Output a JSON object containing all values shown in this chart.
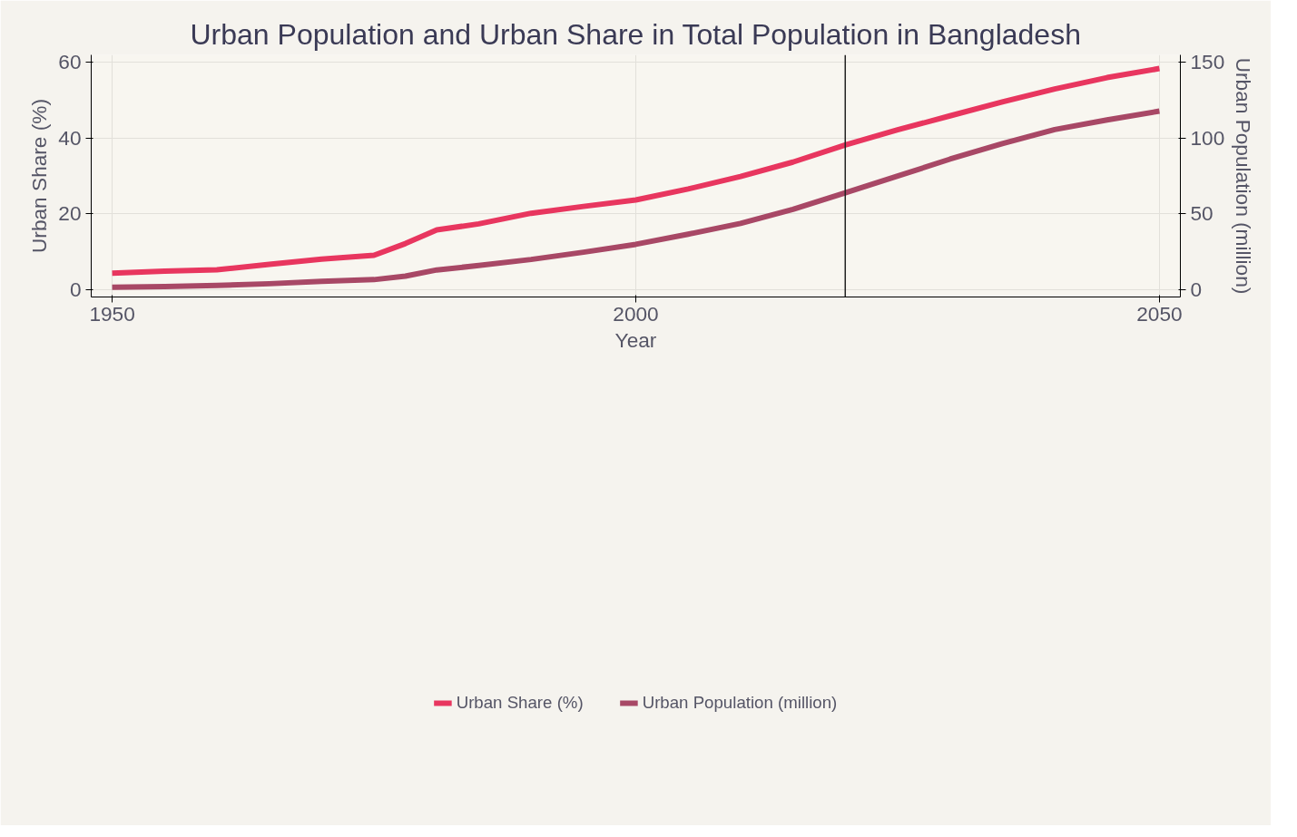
{
  "chart_data": {
    "type": "line",
    "title": "Urban Population and Urban Share in Total Population in Bangladesh",
    "xlabel": "Year",
    "ylabel": "Urban Share (%)",
    "y2label": "Urban Population (million)",
    "x": [
      1950,
      1955,
      1960,
      1965,
      1970,
      1975,
      1978,
      1981,
      1985,
      1990,
      1995,
      2000,
      2005,
      2010,
      2015,
      2020,
      2025,
      2030,
      2035,
      2040,
      2045,
      2050
    ],
    "series": [
      {
        "name": "Urban Share (%)",
        "color": "#e8365f",
        "values": [
          4.4,
          4.9,
          5.3,
          6.7,
          8.1,
          9.1,
          12.2,
          15.8,
          17.4,
          20.2,
          22.0,
          23.7,
          26.6,
          29.9,
          33.7,
          38.2,
          42.2,
          45.9,
          49.6,
          53.0,
          56.0,
          58.4
        ]
      },
      {
        "name": "Urban Population (million)",
        "color": "#a84866",
        "axis": "y2",
        "values": [
          1.7,
          2.1,
          2.9,
          4.0,
          5.5,
          6.7,
          9.0,
          13.1,
          16.0,
          20.0,
          24.8,
          30.0,
          36.7,
          43.8,
          53.1,
          64.0,
          75.0,
          86.2,
          96.4,
          105.7,
          112.1,
          117.9
        ]
      }
    ],
    "xlim": [
      1948,
      2052
    ],
    "xticks": [
      1950,
      2000,
      2050
    ],
    "ylim": [
      -1.9,
      62
    ],
    "yticks": [
      0,
      20,
      40,
      60
    ],
    "y2lim": [
      -4.75,
      155
    ],
    "y2ticks": [
      0,
      50,
      100,
      150
    ],
    "ref_lines": [
      {
        "axis": "x",
        "value": 2020,
        "color": "#222222"
      }
    ],
    "grid": true,
    "legend": "bottom"
  }
}
